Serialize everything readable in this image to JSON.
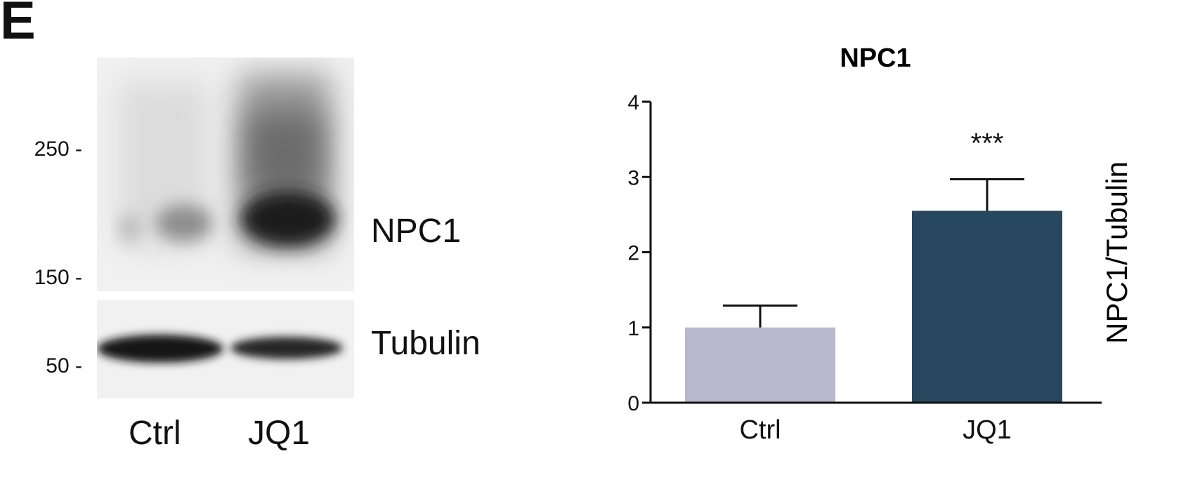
{
  "panel_label": "E",
  "blot": {
    "mw_markers": [
      "250 -",
      "150 -",
      "50 -"
    ],
    "band_labels": [
      "NPC1",
      "Tubulin"
    ],
    "lanes": [
      "Ctrl",
      "JQ1"
    ]
  },
  "chart_data": {
    "type": "bar",
    "title": "NPC1",
    "xlabel": "",
    "ylabel": "NPC1/Tubulin",
    "categories": [
      "Ctrl",
      "JQ1"
    ],
    "values": [
      1.0,
      2.55
    ],
    "error": [
      0.29,
      0.42
    ],
    "ylim": [
      0,
      4
    ],
    "yticks": [
      0,
      1,
      2,
      3,
      4
    ],
    "bar_colors": [
      "#b8b8cc",
      "#27475f"
    ],
    "significance": [
      "",
      "***"
    ],
    "grid": false,
    "legend": "none"
  }
}
